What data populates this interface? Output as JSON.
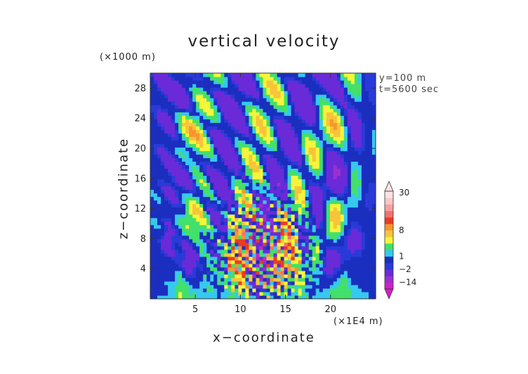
{
  "chart_data": {
    "type": "heatmap",
    "title": "vertical velocity",
    "xlabel": "x−coordinate",
    "ylabel": "z−coordinate",
    "x_unit": "(×1E4 m)",
    "y_unit": "(×1000 m)",
    "annotations": [
      "y=100 m",
      "t=5600 sec"
    ],
    "xlim": [
      0,
      25
    ],
    "ylim": [
      0,
      30
    ],
    "x_ticks": [
      5,
      10,
      15,
      20
    ],
    "y_ticks": [
      4,
      8,
      12,
      16,
      20,
      24,
      28
    ],
    "colorbar": {
      "tick_labels": [
        "30",
        "8",
        "1",
        "−2",
        "−14"
      ],
      "levels": [
        -20,
        -14,
        -8,
        -2,
        -1,
        1,
        2,
        4,
        6,
        8,
        10,
        15,
        20,
        25,
        30
      ],
      "colors": [
        "#d21fc8",
        "#9b30d0",
        "#6a2ad8",
        "#2a3ad8",
        "#1a2fbf",
        "#36c8f0",
        "#43e06a",
        "#f5f53a",
        "#f7c43a",
        "#f7962f",
        "#ee3a22",
        "#f47070",
        "#f8a0a0",
        "#fbc6c6",
        "#fde3e3"
      ]
    }
  }
}
